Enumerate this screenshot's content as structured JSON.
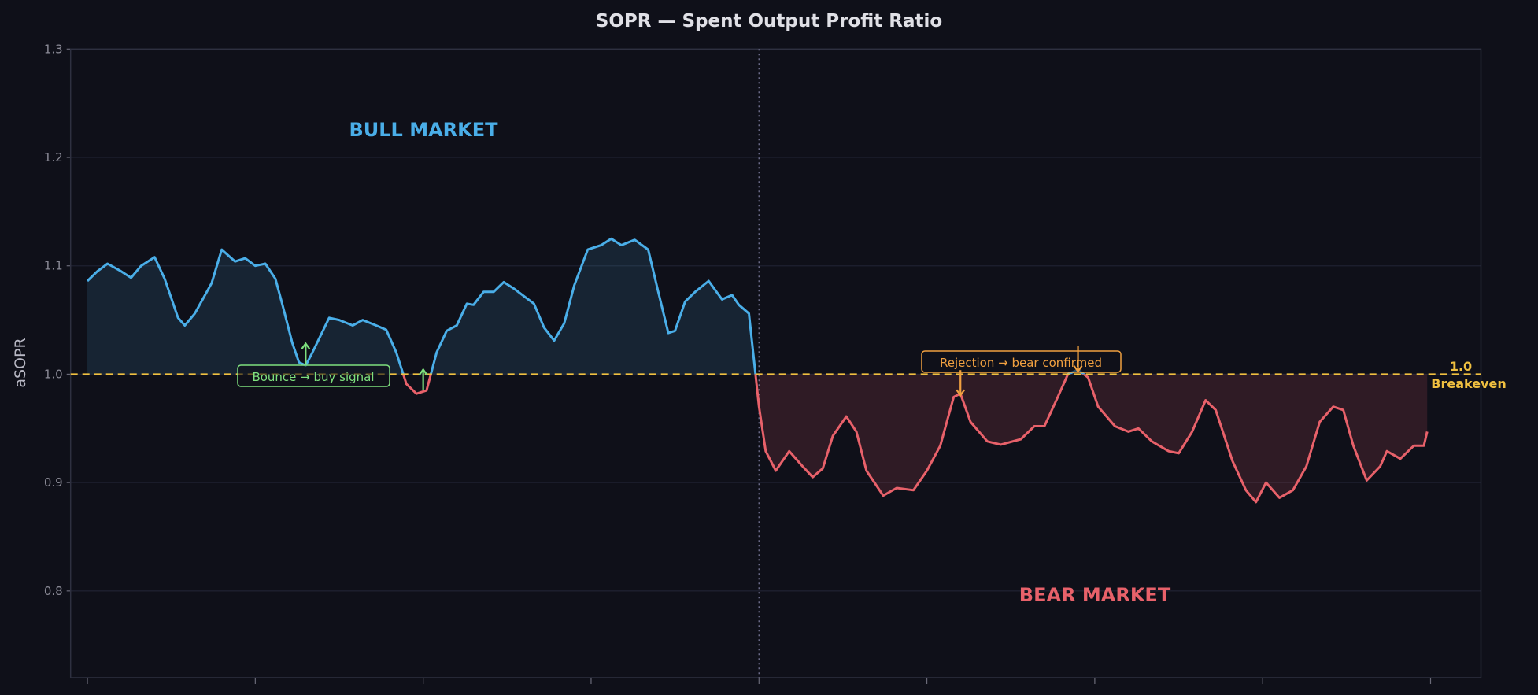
{
  "chart_data": {
    "type": "line",
    "title": "SOPR — Spent Output Profit Ratio",
    "xlabel": "",
    "ylabel": "aSOPR",
    "ylim": [
      0.72,
      1.3
    ],
    "xlim": [
      -5,
      415
    ],
    "yticks": [
      0.8,
      0.9,
      1.0,
      1.1,
      1.2,
      1.3
    ],
    "ytick_labels": [
      "0.8",
      "0.9",
      "1.0",
      "1.1",
      "1.2",
      "1.3"
    ],
    "xticks": [
      0,
      50,
      100,
      150,
      200,
      250,
      300,
      350,
      400
    ],
    "grid": true,
    "colors": {
      "background": "#0f1019",
      "above": "#4aaee8",
      "below": "#e8616a",
      "breakeven": "#f0c040",
      "buy": "#7ee07e",
      "rejection": "#f0a040"
    },
    "regime_split_x": 200,
    "regions": [
      {
        "label": "BULL MARKET",
        "color": "#4aaee8"
      },
      {
        "label": "BEAR MARKET",
        "color": "#e8616a"
      }
    ],
    "breakeven": {
      "value": 1.0,
      "label_value": "1.0",
      "label_text": "Breakeven"
    },
    "series": [
      {
        "x": [
          0,
          3,
          6,
          10,
          13,
          16,
          20,
          23,
          27,
          29,
          32,
          37,
          40,
          44,
          47,
          50,
          53,
          56,
          58,
          61,
          63,
          65,
          67,
          72,
          75,
          79,
          82,
          86,
          89,
          92,
          95,
          98,
          101,
          104,
          107,
          110,
          113,
          115,
          118,
          121,
          124,
          127,
          133,
          136,
          139,
          142,
          145,
          149,
          153,
          156,
          159,
          163,
          167,
          170,
          173,
          175,
          178,
          181,
          185,
          189,
          192,
          194,
          197,
          200,
          202,
          205,
          209,
          213,
          216,
          219,
          222,
          226,
          229,
          232,
          237,
          241,
          246,
          250,
          254,
          258,
          260,
          263,
          268,
          272,
          278,
          282,
          285,
          289,
          292,
          295,
          298,
          301,
          306,
          310,
          313,
          317,
          322,
          325,
          329,
          333,
          336,
          341,
          345,
          348,
          351,
          355,
          359,
          363,
          367,
          371,
          374,
          377,
          381,
          385,
          387,
          391,
          395,
          398,
          399
        ],
        "y": [
          1.086,
          1.095,
          1.102,
          1.095,
          1.089,
          1.1,
          1.108,
          1.088,
          1.052,
          1.045,
          1.056,
          1.084,
          1.115,
          1.104,
          1.107,
          1.1,
          1.102,
          1.088,
          1.065,
          1.029,
          1.011,
          1.008,
          1.02,
          1.052,
          1.05,
          1.045,
          1.05,
          1.045,
          1.041,
          1.02,
          0.991,
          0.982,
          0.985,
          1.02,
          1.04,
          1.045,
          1.065,
          1.064,
          1.076,
          1.076,
          1.085,
          1.079,
          1.065,
          1.043,
          1.031,
          1.047,
          1.082,
          1.115,
          1.119,
          1.125,
          1.119,
          1.124,
          1.115,
          1.076,
          1.038,
          1.04,
          1.067,
          1.076,
          1.086,
          1.069,
          1.073,
          1.064,
          1.056,
          0.97,
          0.929,
          0.911,
          0.929,
          0.915,
          0.905,
          0.913,
          0.943,
          0.961,
          0.947,
          0.911,
          0.888,
          0.895,
          0.893,
          0.911,
          0.934,
          0.979,
          0.982,
          0.956,
          0.938,
          0.935,
          0.94,
          0.952,
          0.952,
          0.979,
          1.0,
          1.004,
          0.997,
          0.97,
          0.952,
          0.947,
          0.95,
          0.938,
          0.929,
          0.927,
          0.947,
          0.976,
          0.967,
          0.92,
          0.893,
          0.882,
          0.9,
          0.886,
          0.893,
          0.915,
          0.956,
          0.97,
          0.967,
          0.934,
          0.902,
          0.915,
          0.929,
          0.922,
          0.934,
          0.934,
          0.947
        ]
      }
    ],
    "annotations": [
      {
        "text": "Bounce → buy signal",
        "color": "#7ee07e",
        "arrows": [
          {
            "x": 65,
            "dir": "up"
          },
          {
            "x": 100,
            "dir": "up"
          }
        ]
      },
      {
        "text": "Rejection → bear confirmed",
        "color": "#f0a040",
        "arrows": [
          {
            "x": 260,
            "dir": "down"
          },
          {
            "x": 295,
            "dir": "down"
          }
        ]
      }
    ]
  }
}
